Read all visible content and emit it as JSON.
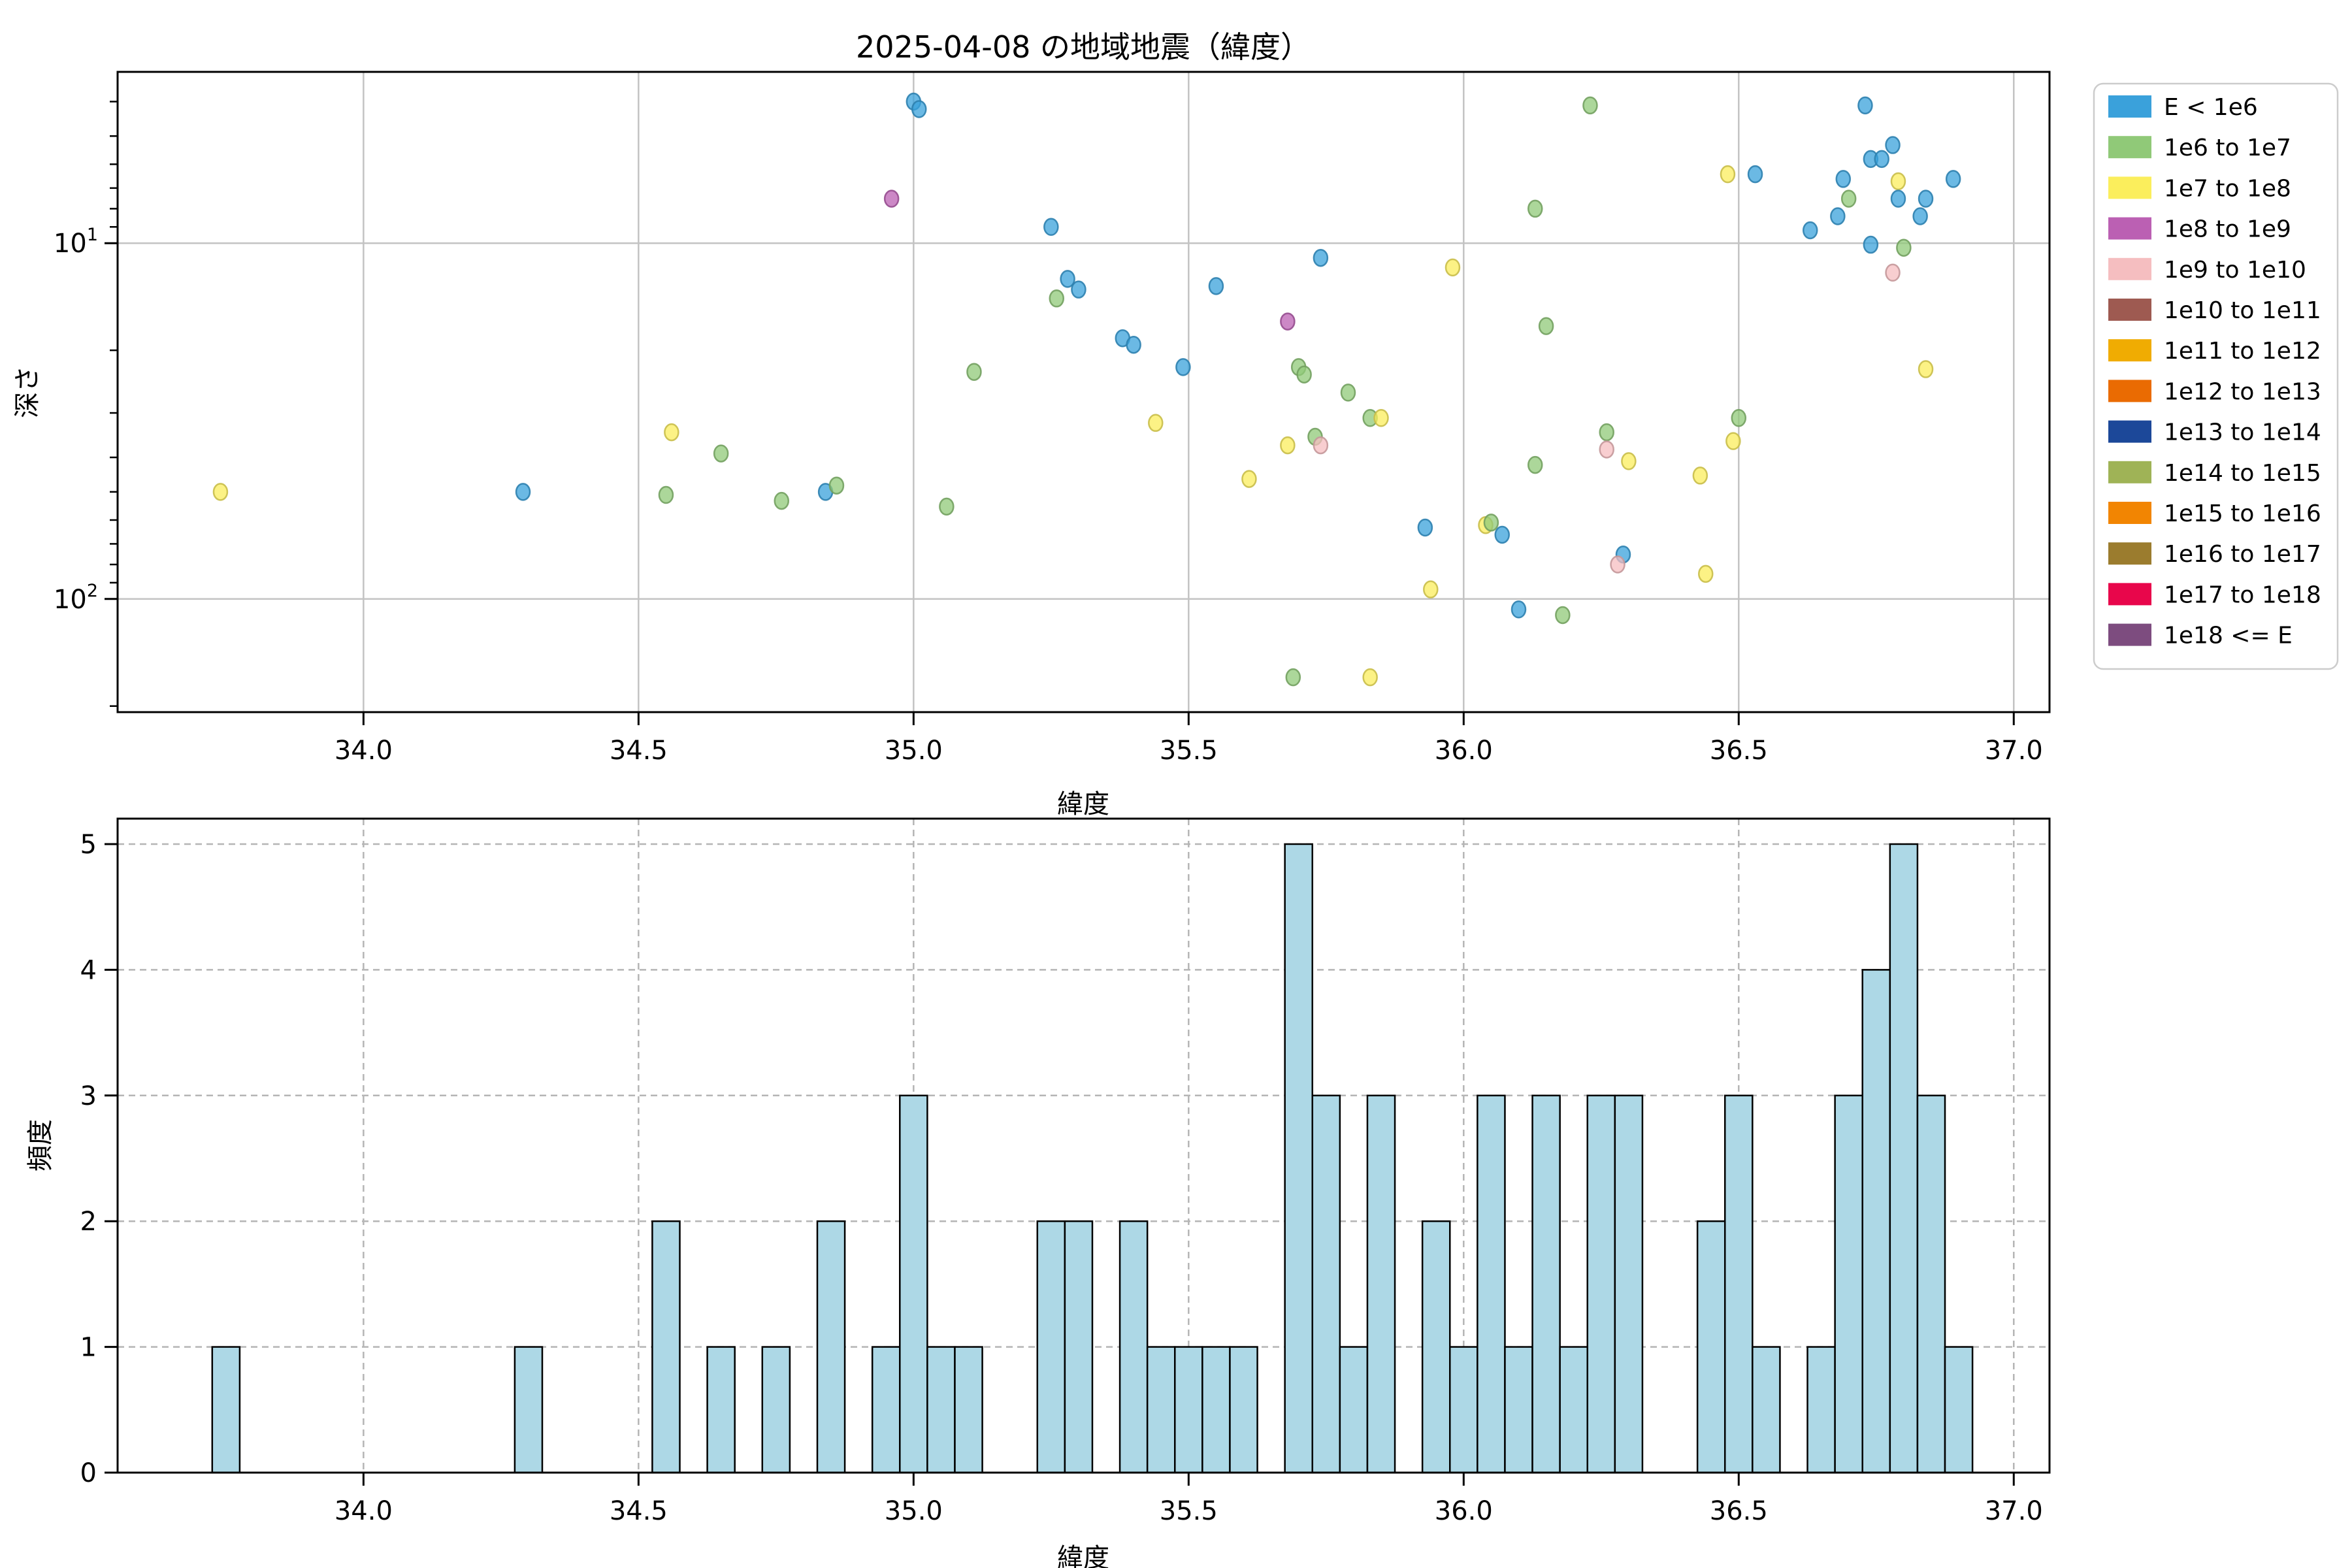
{
  "title": "2025-04-08 の地域地震（緯度）",
  "chart_data": [
    {
      "type": "scatter",
      "title": "2025-04-08 の地域地震（緯度）",
      "xlabel": "緯度",
      "ylabel": "深さ",
      "xlim": [
        33.553,
        37.065
      ],
      "yscale": "log-inverted",
      "ylim_top": 3.3,
      "ylim_bottom": 208,
      "grid": "solid",
      "xticks": [
        "34.0",
        "34.5",
        "35.0",
        "35.5",
        "36.0",
        "36.5",
        "37.0"
      ],
      "xtick_values": [
        34.0,
        34.5,
        35.0,
        35.5,
        36.0,
        36.5,
        37.0
      ],
      "yticks": [
        {
          "base": "10",
          "sup": "1",
          "value": 10
        },
        {
          "base": "10",
          "sup": "2",
          "value": 100
        }
      ],
      "legend": {
        "position": "outside-right",
        "entries": [
          {
            "label": "E < 1e6",
            "color": "#3AA1DB"
          },
          {
            "label": "1e6 to 1e7",
            "color": "#90C978"
          },
          {
            "label": "1e7 to 1e8",
            "color": "#FBEE5C"
          },
          {
            "label": "1e8 to 1e9",
            "color": "#BB60B3"
          },
          {
            "label": "1e9 to 1e10",
            "color": "#F5BEC0"
          },
          {
            "label": "1e10 to 1e11",
            "color": "#9E5A51"
          },
          {
            "label": "1e11 to 1e12",
            "color": "#F0AC02"
          },
          {
            "label": "1e12 to 1e13",
            "color": "#EA6B02"
          },
          {
            "label": "1e13 to 1e14",
            "color": "#1C4899"
          },
          {
            "label": "1e14 to 1e15",
            "color": "#9FB356"
          },
          {
            "label": "1e15 to 1e16",
            "color": "#F28502"
          },
          {
            "label": "1e16 to 1e17",
            "color": "#9B7C2E"
          },
          {
            "label": "1e17 to 1e18",
            "color": "#E8064B"
          },
          {
            "label": "1e18 <= E",
            "color": "#7D4C7F"
          }
        ]
      },
      "points_format": [
        "latitude",
        "depth_km",
        "energy_bin_index"
      ],
      "points": [
        [
          33.74,
          50,
          2
        ],
        [
          34.29,
          50,
          0
        ],
        [
          34.56,
          34,
          2
        ],
        [
          34.55,
          51,
          1
        ],
        [
          34.65,
          39,
          1
        ],
        [
          34.76,
          53,
          1
        ],
        [
          34.84,
          50,
          0
        ],
        [
          34.86,
          48,
          1
        ],
        [
          34.96,
          7.5,
          3
        ],
        [
          35.0,
          4.0,
          0
        ],
        [
          35.01,
          4.2,
          0
        ],
        [
          35.06,
          55,
          1
        ],
        [
          35.11,
          23,
          1
        ],
        [
          35.25,
          9.0,
          0
        ],
        [
          35.26,
          14.3,
          1
        ],
        [
          35.28,
          12.6,
          0
        ],
        [
          35.3,
          13.5,
          0
        ],
        [
          35.38,
          18.5,
          0
        ],
        [
          35.4,
          19.3,
          0
        ],
        [
          35.44,
          32,
          2
        ],
        [
          35.49,
          22.3,
          0
        ],
        [
          35.55,
          13.2,
          0
        ],
        [
          35.61,
          46,
          2
        ],
        [
          35.68,
          16.6,
          3
        ],
        [
          35.7,
          22.3,
          1
        ],
        [
          35.71,
          23.4,
          1
        ],
        [
          35.68,
          37,
          2
        ],
        [
          35.69,
          166,
          1
        ],
        [
          35.74,
          11.0,
          0
        ],
        [
          35.73,
          35,
          1
        ],
        [
          35.74,
          37,
          4
        ],
        [
          35.79,
          26.3,
          1
        ],
        [
          35.83,
          31,
          1
        ],
        [
          35.85,
          31,
          2
        ],
        [
          35.83,
          166,
          2
        ],
        [
          35.93,
          63,
          0
        ],
        [
          35.94,
          94,
          2
        ],
        [
          35.98,
          11.7,
          2
        ],
        [
          36.04,
          62,
          2
        ],
        [
          36.05,
          61,
          1
        ],
        [
          36.07,
          66,
          0
        ],
        [
          36.1,
          107,
          0
        ],
        [
          36.13,
          8.0,
          1
        ],
        [
          36.15,
          17.1,
          1
        ],
        [
          36.13,
          42,
          1
        ],
        [
          36.18,
          111,
          1
        ],
        [
          36.23,
          4.1,
          1
        ],
        [
          36.26,
          34,
          1
        ],
        [
          36.26,
          38,
          4
        ],
        [
          36.29,
          75,
          0
        ],
        [
          36.28,
          80,
          4
        ],
        [
          36.3,
          41,
          2
        ],
        [
          36.43,
          45,
          2
        ],
        [
          36.44,
          85,
          2
        ],
        [
          36.48,
          6.4,
          2
        ],
        [
          36.49,
          36,
          2
        ],
        [
          36.5,
          31,
          1
        ],
        [
          36.53,
          6.4,
          0
        ],
        [
          36.63,
          9.2,
          0
        ],
        [
          36.68,
          8.4,
          0
        ],
        [
          36.69,
          6.6,
          0
        ],
        [
          36.7,
          7.5,
          1
        ],
        [
          36.73,
          4.1,
          0
        ],
        [
          36.74,
          5.8,
          0
        ],
        [
          36.76,
          5.8,
          0
        ],
        [
          36.74,
          10.1,
          0
        ],
        [
          36.78,
          5.3,
          0
        ],
        [
          36.79,
          6.7,
          2
        ],
        [
          36.79,
          7.5,
          0
        ],
        [
          36.78,
          12.1,
          4
        ],
        [
          36.8,
          10.3,
          1
        ],
        [
          36.83,
          8.4,
          0
        ],
        [
          36.84,
          7.5,
          0
        ],
        [
          36.84,
          22.6,
          2
        ],
        [
          36.89,
          6.6,
          0
        ]
      ]
    },
    {
      "type": "bar",
      "subtype": "histogram",
      "xlabel": "緯度",
      "ylabel": "頻度",
      "xlim": [
        33.553,
        37.065
      ],
      "ylim": [
        0,
        5
      ],
      "grid": "dashed",
      "xticks": [
        "34.0",
        "34.5",
        "35.0",
        "35.5",
        "36.0",
        "36.5",
        "37.0"
      ],
      "xtick_values": [
        34.0,
        34.5,
        35.0,
        35.5,
        36.0,
        36.5,
        37.0
      ],
      "yticks": [
        "0",
        "1",
        "2",
        "3",
        "4",
        "5"
      ],
      "ytick_values": [
        0,
        1,
        2,
        3,
        4,
        5
      ],
      "bin_width": 0.05,
      "bar_color": "#ADD8E6",
      "bar_edge_color": "#000000",
      "categories": [
        33.75,
        34.3,
        34.55,
        34.65,
        34.75,
        34.85,
        34.95,
        35.0,
        35.05,
        35.1,
        35.25,
        35.3,
        35.4,
        35.45,
        35.5,
        35.55,
        35.6,
        35.7,
        35.75,
        35.8,
        35.85,
        35.95,
        36.0,
        36.05,
        36.1,
        36.15,
        36.2,
        36.25,
        36.3,
        36.45,
        36.5,
        36.55,
        36.65,
        36.7,
        36.75,
        36.8,
        36.85,
        36.9
      ],
      "values": [
        1,
        1,
        2,
        1,
        1,
        2,
        1,
        3,
        1,
        1,
        2,
        2,
        2,
        1,
        1,
        1,
        1,
        5,
        3,
        1,
        3,
        2,
        1,
        3,
        1,
        3,
        1,
        3,
        3,
        2,
        3,
        1,
        1,
        3,
        4,
        5,
        3,
        1
      ]
    }
  ]
}
